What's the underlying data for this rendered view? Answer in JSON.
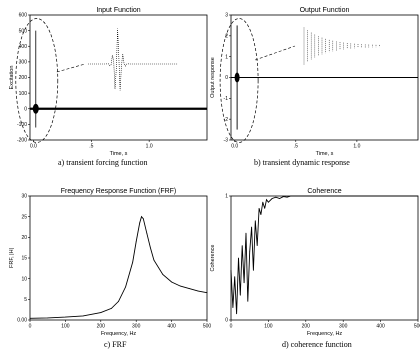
{
  "captions": {
    "a": "a) transient forcing function",
    "b": "b) transient dynamic response",
    "c": "c) FRF",
    "d": "d) coherence function"
  },
  "chart_data": [
    {
      "type": "line",
      "title": "Input Function",
      "xlabel": "Time, s",
      "ylabel": "Excitation",
      "xlim": [
        -0.03,
        1.5
      ],
      "ylim": [
        -200,
        600
      ],
      "xticks": [
        0.0,
        0.5,
        1.0
      ],
      "xtick_labels": [
        "0.0",
        ".5",
        "1.0"
      ],
      "yticks": [
        -200,
        -100,
        0,
        100,
        200,
        300,
        400,
        500,
        600
      ],
      "ytick_labels": [
        "-200",
        "-100",
        "0",
        "100",
        "200",
        "300",
        "400",
        "500",
        "600"
      ],
      "description_points": {
        "baseline": 0,
        "impulse_time": 0.02,
        "impulse_peak": 500,
        "impulse_min": -120
      },
      "annotation": "dashed ellipse around impulse with zoomed inset of pulse"
    },
    {
      "type": "line",
      "title": "Output Function",
      "xlabel": "Time, s",
      "ylabel": "Output response",
      "xlim": [
        -0.03,
        1.5
      ],
      "ylim": [
        -3,
        3
      ],
      "xticks": [
        0.0,
        0.5,
        1.0
      ],
      "xtick_labels": [
        "0.0",
        ".5",
        "1.0"
      ],
      "yticks": [
        -3,
        -2,
        -1,
        0,
        1,
        2,
        3
      ],
      "ytick_labels": [
        "-3",
        "-2",
        "-1",
        "0",
        "1",
        "2",
        "3"
      ],
      "description_points": {
        "baseline": 0,
        "response_time": 0.02,
        "response_peak": 2.5,
        "response_min": -2.5
      },
      "annotation": "dashed ellipse around response with zoomed inset of decaying oscillation"
    },
    {
      "type": "line",
      "title": "Frequency Response Function (FRF)",
      "xlabel": "Frequency, Hz",
      "ylabel": "FRF, |H|",
      "xlim": [
        0,
        500
      ],
      "ylim": [
        0,
        30
      ],
      "xticks": [
        0,
        100,
        200,
        300,
        400,
        500
      ],
      "xtick_labels": [
        "0",
        "100",
        "200",
        "300",
        "400",
        "500"
      ],
      "yticks": [
        0,
        5,
        10,
        15,
        20,
        25,
        30
      ],
      "ytick_labels": [
        "0.00",
        "5",
        "10",
        "15",
        "20",
        "25",
        "30"
      ],
      "x": [
        0,
        50,
        100,
        150,
        200,
        230,
        250,
        270,
        290,
        300,
        310,
        315,
        320,
        330,
        340,
        350,
        375,
        400,
        425,
        450,
        475,
        500
      ],
      "y": [
        0.4,
        0.5,
        0.7,
        1.0,
        1.8,
        2.8,
        4.5,
        8.0,
        14.0,
        19.0,
        23.5,
        25.0,
        24.5,
        21.0,
        17.5,
        14.5,
        11.0,
        9.2,
        8.2,
        7.6,
        7.0,
        6.6
      ]
    },
    {
      "type": "line",
      "title": "Coherence",
      "xlabel": "Frequency, Hz",
      "ylabel": "Coherence",
      "xlim": [
        0,
        500
      ],
      "ylim": [
        0,
        1
      ],
      "xticks": [
        0,
        100,
        200,
        300,
        400,
        500
      ],
      "xtick_labels": [
        "0",
        "100",
        "200",
        "300",
        "400",
        "500"
      ],
      "yticks": [
        0,
        1
      ],
      "ytick_labels": [
        "0",
        "1"
      ],
      "x": [
        0,
        5,
        10,
        15,
        20,
        25,
        30,
        35,
        40,
        45,
        50,
        55,
        60,
        65,
        70,
        75,
        80,
        85,
        90,
        95,
        100,
        110,
        120,
        130,
        140,
        150,
        160,
        180,
        200,
        300,
        400,
        500
      ],
      "y": [
        0.4,
        0.1,
        0.35,
        0.05,
        0.5,
        0.2,
        0.6,
        0.3,
        0.7,
        0.15,
        0.55,
        0.75,
        0.4,
        0.8,
        0.6,
        0.9,
        0.85,
        0.95,
        0.9,
        0.97,
        0.95,
        0.98,
        0.99,
        0.98,
        0.995,
        0.99,
        1.0,
        1.0,
        1.0,
        1.0,
        1.0,
        1.0
      ]
    }
  ]
}
